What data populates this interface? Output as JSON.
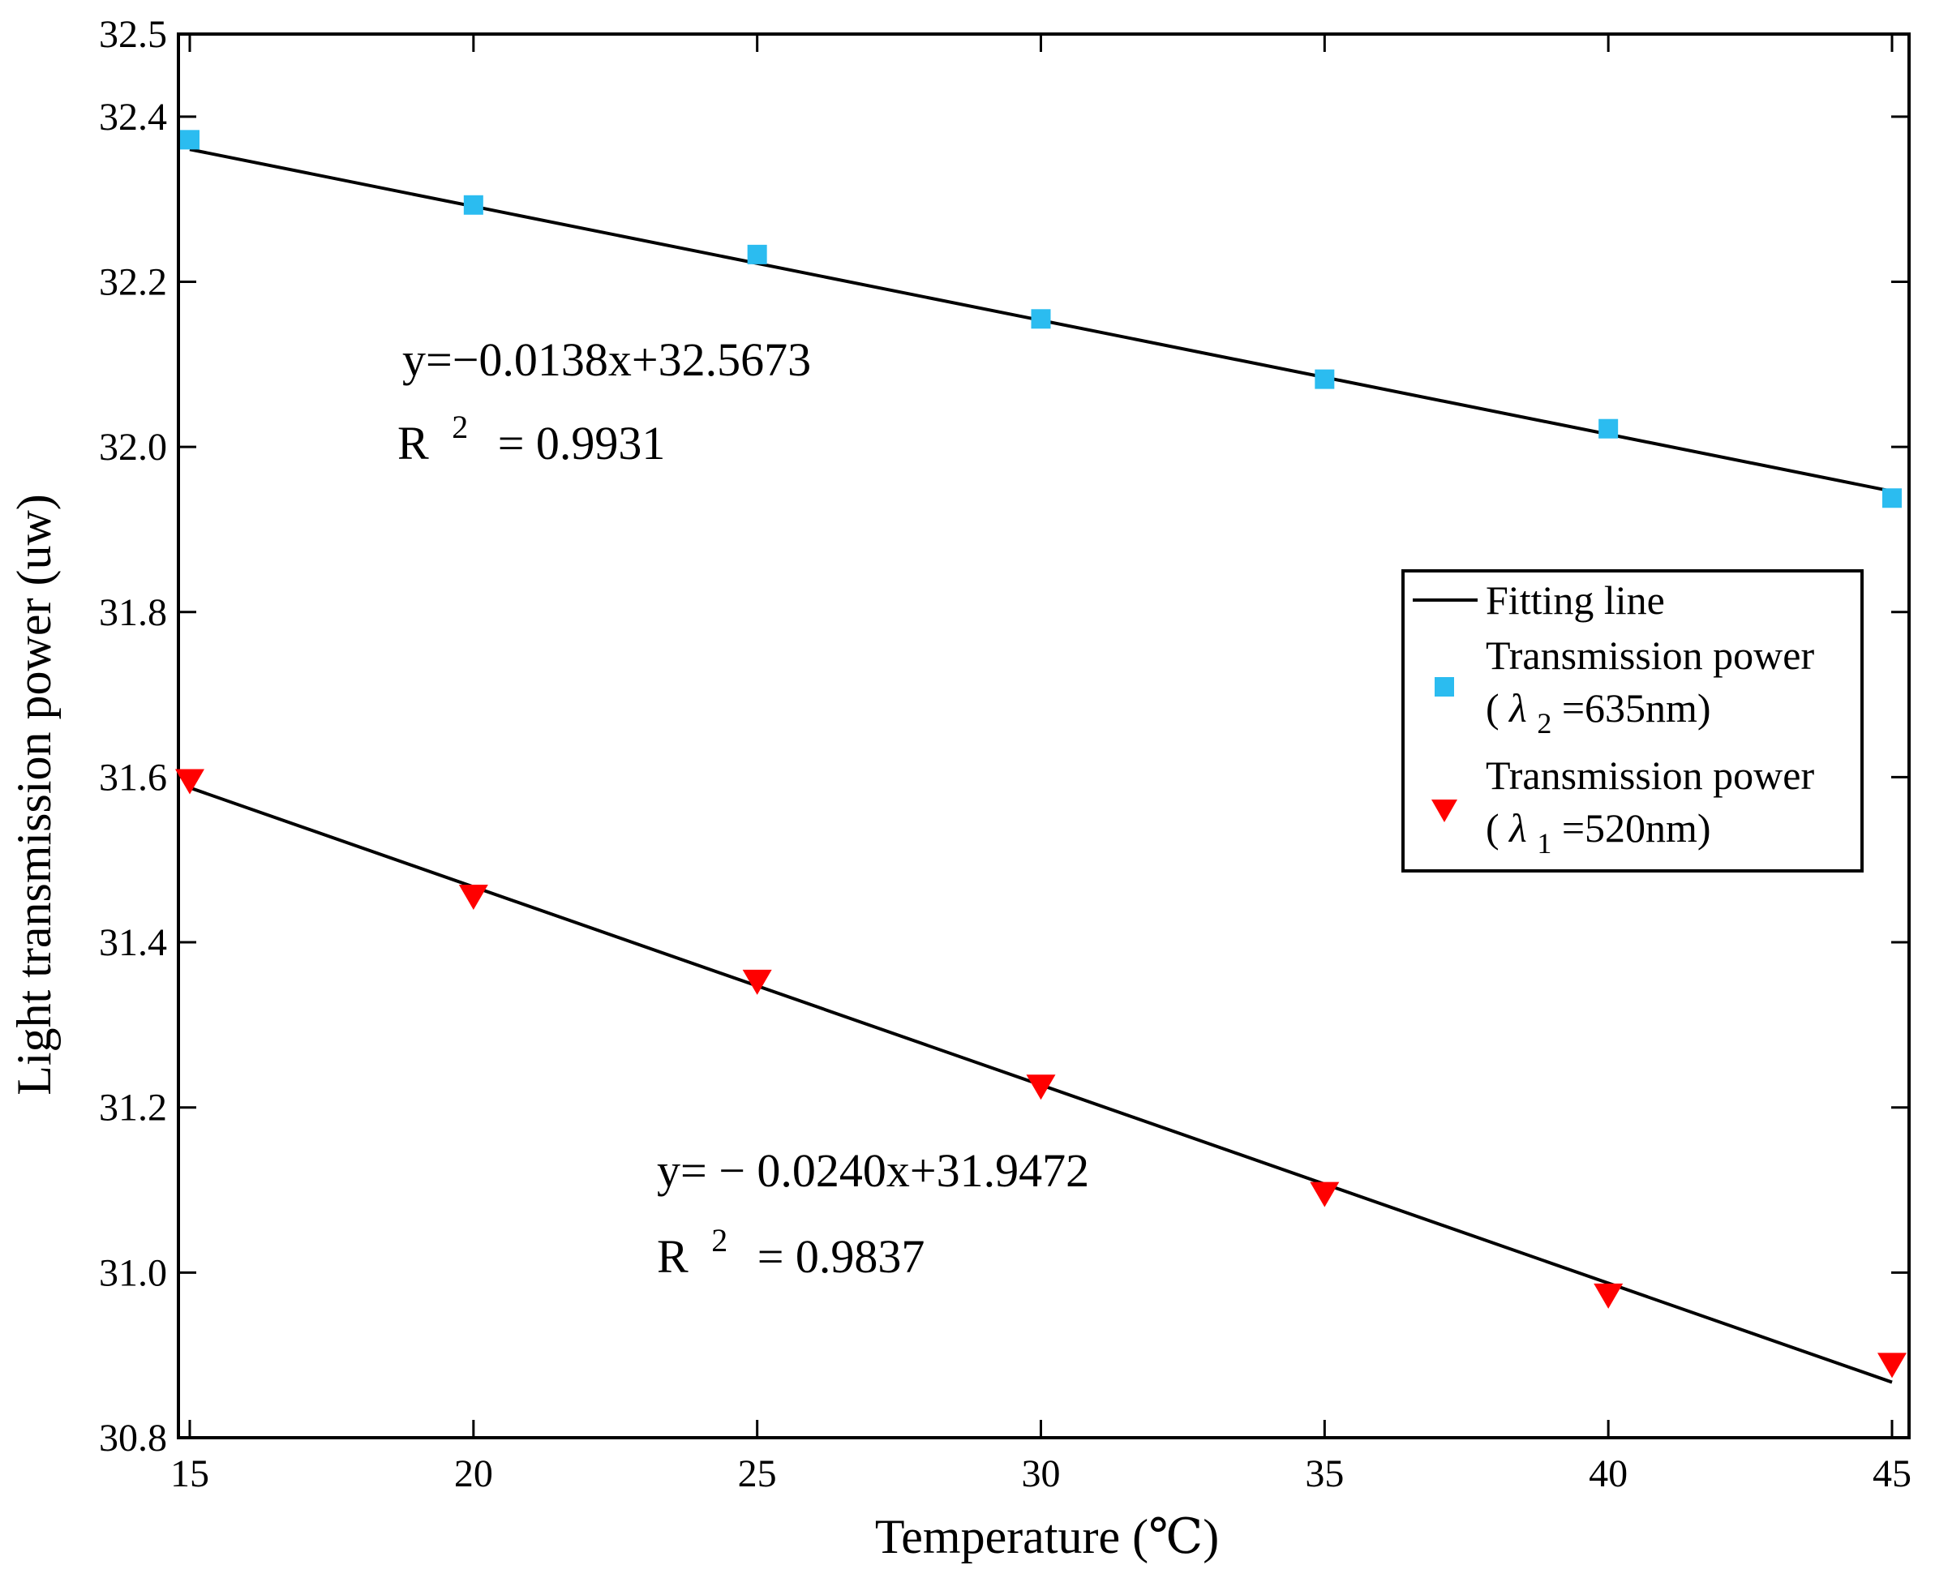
{
  "chart_data": {
    "type": "scatter",
    "title": "",
    "xlabel": "Temperature (℃)",
    "ylabel": "Light transmission power (uw)",
    "xlim": [
      14.8,
      45.3
    ],
    "ylim": [
      30.8,
      32.5
    ],
    "x_ticks": [
      15,
      20,
      25,
      30,
      35,
      40,
      45
    ],
    "x_tick_labels": [
      "15",
      "20",
      "25",
      "30",
      "35",
      "40",
      "45"
    ],
    "y_ticks": [
      30.8,
      31.0,
      31.2,
      31.4,
      31.6,
      31.8,
      32.0,
      32.2,
      32.4,
      32.5
    ],
    "y_tick_labels": [
      "30.8",
      "31.0",
      "31.2",
      "31.4",
      "31.6",
      "31.8",
      "32.0",
      "32.2",
      "32.4",
      "32.5"
    ],
    "grid": false,
    "legend_position": "right",
    "series": [
      {
        "name": "Transmission power (λ2=635nm)",
        "marker": "square",
        "color": "#2bbcf0",
        "x": [
          15,
          20,
          25,
          30,
          35,
          40,
          45
        ],
        "y": [
          32.372,
          32.293,
          32.233,
          32.155,
          32.082,
          32.022,
          31.938
        ]
      },
      {
        "name": "Transmission power (λ1=520nm)",
        "marker": "triangle-down",
        "color": "#ff0000",
        "x": [
          15,
          20,
          25,
          30,
          35,
          40,
          45
        ],
        "y": [
          31.595,
          31.455,
          31.352,
          31.225,
          31.095,
          30.972,
          30.888
        ]
      }
    ],
    "fit_lines": [
      {
        "name": "Fitting line",
        "slope": -0.0138,
        "intercept": 32.5673,
        "x_range": [
          15,
          45
        ],
        "color": "#000000"
      },
      {
        "name": "Fitting line",
        "slope": -0.024,
        "intercept": 31.9472,
        "x_range": [
          15,
          45
        ],
        "color": "#000000"
      }
    ],
    "annotations": [
      {
        "id": "eq1",
        "equation": "y=−0.0138x+32.5673",
        "r2_prefix": "R",
        "r2_sup": "2",
        "r2_value": "= 0.9931"
      },
      {
        "id": "eq2",
        "equation": "y= − 0.0240x+31.9472",
        "r2_prefix": "R",
        "r2_sup": "2",
        "r2_value": "= 0.9837"
      }
    ],
    "legend": {
      "fit_label": "Fitting line",
      "entries": [
        {
          "line1": "Transmission power",
          "paren_open": "(",
          "lambda": "λ",
          "sub": "2",
          "rest": "=635nm)",
          "color": "#2bbcf0",
          "marker": "square"
        },
        {
          "line1": "Transmission power",
          "paren_open": "(",
          "lambda": "λ",
          "sub": "1",
          "rest": "=520nm)",
          "color": "#ff0000",
          "marker": "triangle-down"
        }
      ]
    }
  }
}
